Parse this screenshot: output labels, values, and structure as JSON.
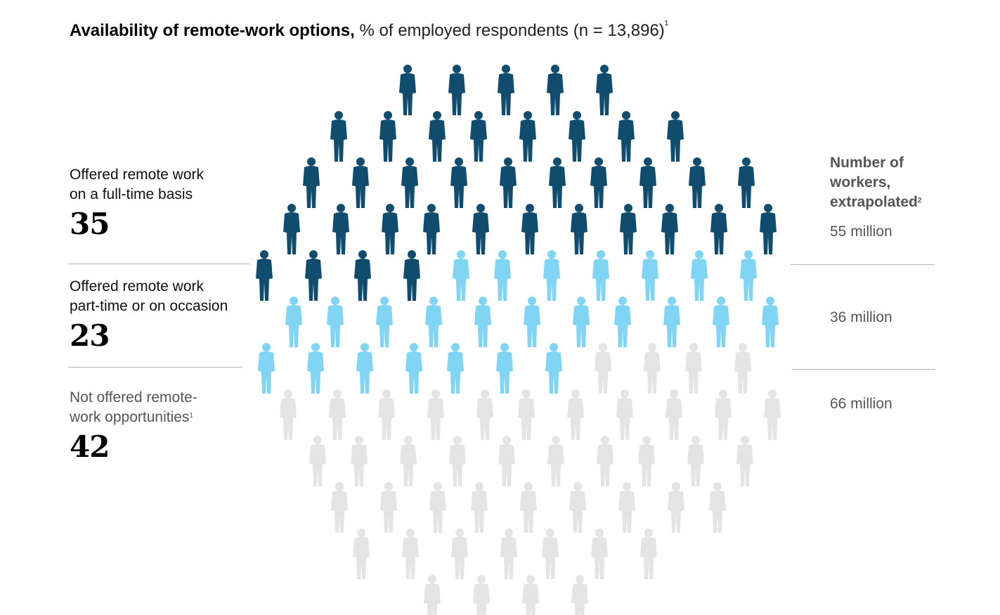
{
  "header": {
    "title_bold": "Availability of remote-work options,",
    "title_rest": " % of employed respondents (n = 13,896)",
    "title_footnote": "1"
  },
  "colors": {
    "full_time": "#0f4c6e",
    "part_time": "#80d4f4",
    "not_offered": "#e4e4e4"
  },
  "categories": [
    {
      "label_line1": "Offered remote work",
      "label_line2": "on a full-time basis",
      "footnote": "",
      "value": "35",
      "workers": "55 million"
    },
    {
      "label_line1": "Offered remote work",
      "label_line2": "part-time or on occasion",
      "footnote": "",
      "value": "23",
      "workers": "36 million"
    },
    {
      "label_line1": "Not offered remote-",
      "label_line2": "work opportunities",
      "footnote": "1",
      "value": "42",
      "workers": "66 million"
    }
  ],
  "right_header": {
    "line1": "Number of",
    "line2": "workers,",
    "line3": "extrapolated",
    "footnote": "2"
  },
  "chart_data": {
    "type": "pictograph",
    "series": [
      {
        "name": "Offered remote work on a full-time basis",
        "percent": 35,
        "workers_millions": 55,
        "color": "#0f4c6e"
      },
      {
        "name": "Offered remote work part-time or on occasion",
        "percent": 23,
        "workers_millions": 36,
        "color": "#80d4f4"
      },
      {
        "name": "Not offered remote-work opportunities",
        "percent": 42,
        "workers_millions": 66,
        "color": "#e4e4e4"
      }
    ],
    "n": 13896
  }
}
